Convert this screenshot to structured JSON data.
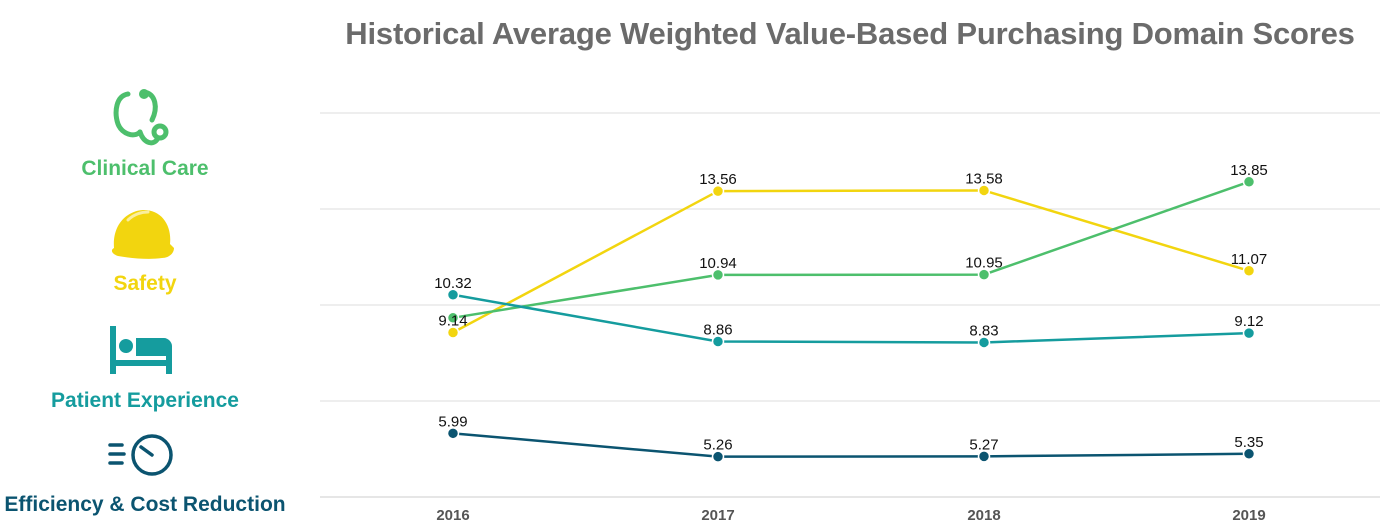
{
  "title": "Historical Average Weighted Value-Based Purchasing Domain Scores",
  "legend": {
    "clinical_care": {
      "label": "Clinical Care",
      "icon": "stethoscope-icon",
      "color": "#4dbf6c"
    },
    "safety": {
      "label": "Safety",
      "icon": "hard-hat-icon",
      "color": "#f2d50f"
    },
    "patient_experience": {
      "label": "Patient Experience",
      "icon": "hospital-bed-icon",
      "color": "#159c9e"
    },
    "efficiency": {
      "label": "Efficiency & Cost Reduction",
      "icon": "speed-gauge-icon",
      "color": "#0b5470"
    }
  },
  "chart_data": {
    "type": "line",
    "title": "Historical Average Weighted Value-Based Purchasing Domain Scores",
    "categories": [
      "2016",
      "2017",
      "2018",
      "2019"
    ],
    "ylim": [
      4,
      16
    ],
    "grid": true,
    "series": [
      {
        "key": "safety",
        "name": "Safety",
        "color": "#f2d50f",
        "values": [
          9.14,
          13.56,
          13.58,
          11.07
        ],
        "labels": [
          "9.14",
          "13.56",
          "13.58",
          "11.07"
        ],
        "label_pos": [
          "above",
          "above",
          "above",
          "above"
        ]
      },
      {
        "key": "clinical_care",
        "name": "Clinical Care",
        "color": "#4dbf6c",
        "values": [
          9.6,
          10.94,
          10.95,
          13.85
        ],
        "labels": [
          "",
          "10.94",
          "10.95",
          "13.85"
        ],
        "label_pos": [
          "none",
          "above",
          "above",
          "above"
        ]
      },
      {
        "key": "patient_experience",
        "name": "Patient Experience",
        "color": "#159c9e",
        "values": [
          10.32,
          8.86,
          8.83,
          9.12
        ],
        "labels": [
          "10.32",
          "8.86",
          "8.83",
          "9.12"
        ],
        "label_pos": [
          "above",
          "above",
          "above",
          "above"
        ]
      },
      {
        "key": "efficiency",
        "name": "Efficiency & Cost Reduction",
        "color": "#0b5470",
        "values": [
          5.99,
          5.26,
          5.27,
          5.35
        ],
        "labels": [
          "5.99",
          "5.26",
          "5.27",
          "5.35"
        ],
        "label_pos": [
          "above",
          "above",
          "above",
          "above"
        ]
      }
    ]
  }
}
